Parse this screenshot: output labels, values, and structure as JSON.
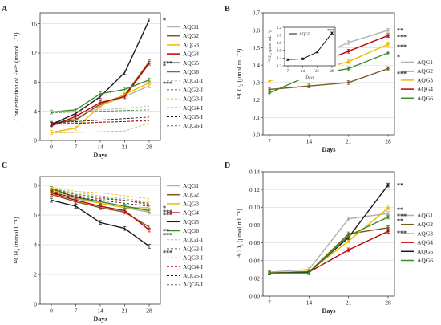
{
  "chart_data": [
    {
      "panel": "A",
      "type": "line",
      "xlabel": "Days",
      "ylabel": "Concentration of Fe²⁺ (mmol L⁻¹)",
      "x": [
        0,
        7,
        14,
        21,
        28
      ],
      "xticks": [
        "0",
        "7",
        "14",
        "21",
        "28"
      ],
      "yticks": [
        "0",
        "4",
        "8",
        "12",
        "16"
      ],
      "ylim": [
        0,
        17.5
      ],
      "legend": "right",
      "series": [
        {
          "name": "AQG1",
          "color": "#b0b0b0",
          "dash": false,
          "values": [
            2.4,
            3.0,
            4.8,
            6.0,
            7.5
          ]
        },
        {
          "name": "AQG2",
          "color": "#7a5a20",
          "dash": false,
          "values": [
            2.3,
            2.8,
            5.0,
            6.2,
            10.8
          ]
        },
        {
          "name": "AQG3",
          "color": "#f2b800",
          "dash": false,
          "values": [
            1.1,
            1.7,
            4.7,
            6.3,
            7.9
          ]
        },
        {
          "name": "AQG4",
          "color": "#c00000",
          "dash": false,
          "values": [
            2.0,
            3.3,
            5.2,
            6.0,
            10.6
          ]
        },
        {
          "name": "AQG5",
          "color": "#1a1a1a",
          "dash": false,
          "values": [
            2.2,
            3.7,
            6.0,
            9.3,
            16.5
          ]
        },
        {
          "name": "AQG6",
          "color": "#3d8a2a",
          "dash": false,
          "values": [
            3.9,
            4.2,
            6.4,
            7.0,
            8.3
          ]
        },
        {
          "name": "AQG1-I",
          "color": "#b0b0b0",
          "dash": true,
          "values": [
            4.0,
            4.0,
            4.2,
            4.4,
            4.7
          ]
        },
        {
          "name": "AQG2-I",
          "color": "#7a5a20",
          "dash": true,
          "values": [
            2.3,
            2.4,
            2.5,
            2.6,
            2.7
          ]
        },
        {
          "name": "AQG3-I",
          "color": "#f2b800",
          "dash": true,
          "values": [
            1.0,
            1.1,
            1.2,
            1.3,
            2.4
          ]
        },
        {
          "name": "AQG4-I",
          "color": "#c00000",
          "dash": true,
          "values": [
            2.2,
            2.3,
            2.5,
            2.6,
            2.8
          ]
        },
        {
          "name": "AQG5-I",
          "color": "#1a1a1a",
          "dash": true,
          "values": [
            2.4,
            2.6,
            2.8,
            3.0,
            3.2
          ]
        },
        {
          "name": "AQG6-I",
          "color": "#3d8a2a",
          "dash": true,
          "values": [
            3.8,
            3.9,
            4.0,
            4.1,
            4.2
          ]
        }
      ],
      "annotations": [
        "*",
        "***",
        "*",
        "***"
      ]
    },
    {
      "panel": "B",
      "type": "line",
      "xlabel": "Days",
      "ylabel": "¹²CO₂ (μmol mL⁻¹)",
      "x": [
        7,
        14,
        21,
        28
      ],
      "xticks": [
        "7",
        "14",
        "21",
        "28"
      ],
      "yticks": [
        "0.0",
        "0.1",
        "0.2",
        "0.3",
        "0.4",
        "0.5",
        "0.6",
        "0.7"
      ],
      "ylim": [
        0,
        0.7
      ],
      "legend": "right",
      "series": [
        {
          "name": "AQG1",
          "color": "#b0b0b0",
          "values": [
            0.38,
            0.43,
            0.53,
            0.6
          ]
        },
        {
          "name": "AQG2",
          "color": "#7a5a20",
          "values": [
            0.26,
            0.28,
            0.3,
            0.38
          ]
        },
        {
          "name": "AQG3",
          "color": "#f2b800",
          "values": [
            0.31,
            0.36,
            0.42,
            0.52
          ]
        },
        {
          "name": "AQG4",
          "color": "#c00000",
          "values": [
            0.36,
            0.39,
            0.48,
            0.57
          ]
        },
        {
          "name": "AQG6",
          "color": "#3d8a2a",
          "values": [
            0.24,
            0.34,
            0.38,
            0.47
          ]
        }
      ],
      "annotations": [
        "**",
        "***",
        "***",
        "*",
        "***"
      ],
      "inset": {
        "ylabel": "¹²CO₂ (μmol mL⁻¹)",
        "xlabel": "Days",
        "x": [
          7,
          14,
          21,
          28
        ],
        "xticks": [
          "7",
          "14",
          "21",
          "28"
        ],
        "yticks": [
          "0.2",
          "0.4",
          "0.6",
          "0.8",
          "1.0",
          "1.2"
        ],
        "ylim": [
          0.2,
          1.2
        ],
        "series": [
          {
            "name": "AQG5",
            "color": "#1a1a1a",
            "values": [
              0.36,
              0.38,
              0.56,
              1.05
            ]
          }
        ],
        "annotations": [
          "***"
        ]
      }
    },
    {
      "panel": "C",
      "type": "line",
      "xlabel": "Days",
      "ylabel": "¹²CH₄ (mmol L⁻¹)",
      "x": [
        0,
        7,
        14,
        21,
        28
      ],
      "xticks": [
        "0",
        "7",
        "14",
        "21",
        "28"
      ],
      "yticks": [
        "0",
        "2",
        "4",
        "6",
        "8"
      ],
      "ylim": [
        0,
        8.6
      ],
      "legend": "right",
      "series": [
        {
          "name": "AQG1",
          "color": "#b0b0b0",
          "dash": false,
          "values": [
            7.6,
            7.1,
            6.8,
            6.5,
            6.2
          ]
        },
        {
          "name": "AQG2",
          "color": "#7a5a20",
          "dash": false,
          "values": [
            7.4,
            6.9,
            6.5,
            6.2,
            5.2
          ]
        },
        {
          "name": "AQG3",
          "color": "#f2b800",
          "dash": false,
          "values": [
            7.7,
            7.2,
            6.8,
            6.5,
            6.5
          ]
        },
        {
          "name": "AQG4",
          "color": "#c00000",
          "dash": false,
          "values": [
            7.5,
            7.0,
            6.6,
            6.3,
            5.0
          ]
        },
        {
          "name": "AQG5",
          "color": "#1a1a1a",
          "dash": false,
          "values": [
            7.0,
            6.6,
            5.5,
            5.1,
            3.9
          ]
        },
        {
          "name": "AQG6",
          "color": "#3d8a2a",
          "dash": false,
          "values": [
            7.8,
            7.2,
            6.9,
            6.6,
            6.3
          ]
        },
        {
          "name": "AQG1-I",
          "color": "#b0b0b0",
          "dash": true,
          "values": [
            7.8,
            7.5,
            7.3,
            7.1,
            6.9
          ]
        },
        {
          "name": "AQG2-I",
          "color": "#7a5a20",
          "dash": true,
          "values": [
            7.7,
            7.4,
            7.2,
            7.0,
            6.8
          ]
        },
        {
          "name": "AQG3-I",
          "color": "#f2b800",
          "dash": true,
          "values": [
            7.9,
            7.6,
            7.5,
            7.3,
            7.1
          ]
        },
        {
          "name": "AQG4-I",
          "color": "#c00000",
          "dash": true,
          "values": [
            7.6,
            7.3,
            7.1,
            7.0,
            6.7
          ]
        },
        {
          "name": "AQG5-I",
          "color": "#1a1a1a",
          "dash": true,
          "values": [
            7.5,
            7.2,
            7.0,
            6.8,
            6.6
          ]
        },
        {
          "name": "AQG6-I",
          "color": "#3d8a2a",
          "dash": true,
          "values": [
            7.8,
            7.4,
            7.2,
            7.0,
            6.8
          ]
        }
      ],
      "annotations": [
        "*",
        "***",
        "***",
        "**",
        "***",
        "***"
      ]
    },
    {
      "panel": "D",
      "type": "line",
      "xlabel": "Days",
      "ylabel": "¹³CO₂ (μmol mL⁻¹)",
      "x": [
        7,
        14,
        21,
        28
      ],
      "xticks": [
        "7",
        "14",
        "21",
        "28"
      ],
      "yticks": [
        "0.00",
        "0.02",
        "0.04",
        "0.06",
        "0.08",
        "0.10",
        "0.12",
        "0.14"
      ],
      "ylim": [
        0,
        0.14
      ],
      "legend": "right",
      "series": [
        {
          "name": "AQG1",
          "color": "#b0b0b0",
          "values": [
            0.027,
            0.03,
            0.087,
            0.093
          ]
        },
        {
          "name": "AQG2",
          "color": "#7a5a20",
          "values": [
            0.026,
            0.027,
            0.07,
            0.077
          ]
        },
        {
          "name": "AQG3",
          "color": "#f2b800",
          "values": [
            0.026,
            0.028,
            0.062,
            0.099
          ]
        },
        {
          "name": "AQG4",
          "color": "#c00000",
          "values": [
            0.026,
            0.027,
            0.052,
            0.073
          ]
        },
        {
          "name": "AQG5",
          "color": "#1a1a1a",
          "values": [
            0.026,
            0.027,
            0.066,
            0.125
          ]
        },
        {
          "name": "AQG6",
          "color": "#3d8a2a",
          "values": [
            0.026,
            0.026,
            0.068,
            0.089
          ]
        }
      ],
      "annotations": [
        "**",
        "**",
        "***",
        "**",
        "***"
      ]
    }
  ]
}
